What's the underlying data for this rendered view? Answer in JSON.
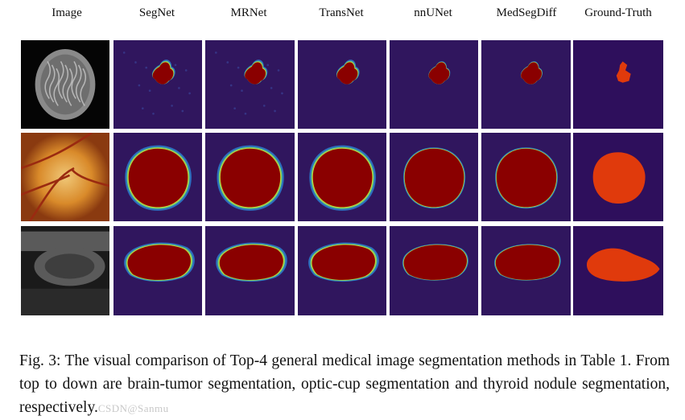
{
  "figure": {
    "columns": [
      "Image",
      "SegNet",
      "MRNet",
      "TransNet",
      "nnUNet",
      "MedSegDiff",
      "Ground-Truth"
    ],
    "rows": [
      "brain-tumor",
      "optic-cup",
      "thyroid-nodule"
    ],
    "colors": {
      "background": "#30165e",
      "hot": "#8a0000",
      "groundtruth_bg": "#2e0f5c",
      "groundtruth_fg": "#e03a0c"
    }
  },
  "caption": {
    "label": "Fig. 3:",
    "text": "The visual comparison of Top-4 general medical image segmentation methods in Table 1. From top to down are brain-tumor segmentation, optic-cup segmentation and thyroid nodule segmentation, respectively.",
    "watermark": "CSDN@Sanmu"
  }
}
